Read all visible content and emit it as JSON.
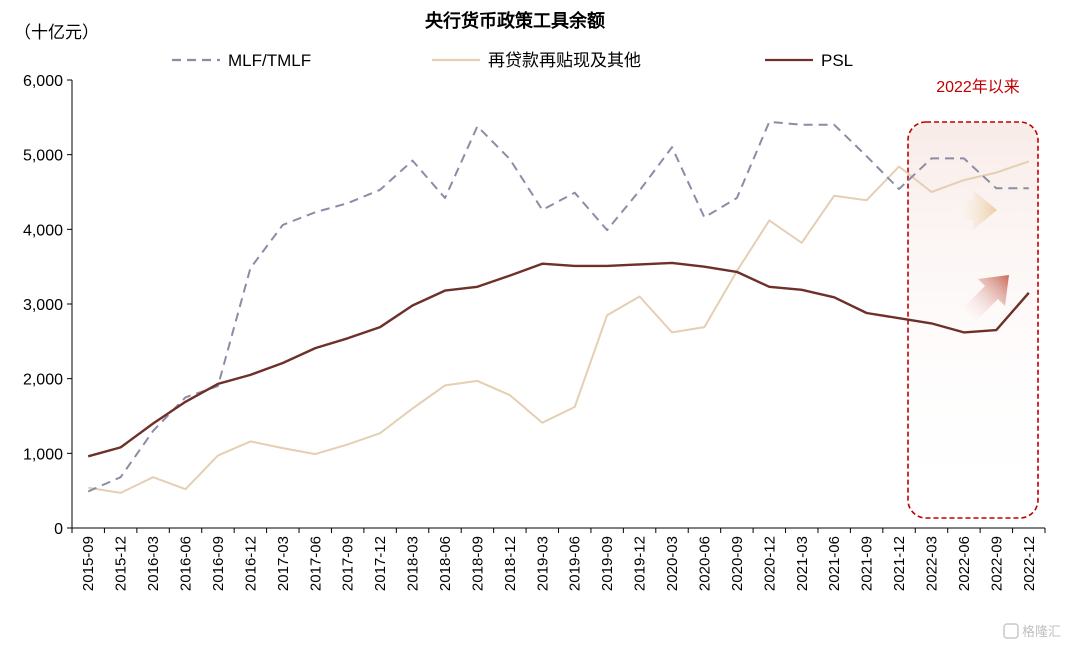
{
  "chart_data": {
    "type": "line",
    "title": "央行货币政策工具余额",
    "unit_label": "（十亿元）",
    "categories": [
      "2015-09",
      "2015-12",
      "2016-03",
      "2016-06",
      "2016-09",
      "2016-12",
      "2017-03",
      "2017-06",
      "2017-09",
      "2017-12",
      "2018-03",
      "2018-06",
      "2018-09",
      "2018-12",
      "2019-03",
      "2019-06",
      "2019-09",
      "2019-12",
      "2020-03",
      "2020-06",
      "2020-09",
      "2020-12",
      "2021-03",
      "2021-06",
      "2021-09",
      "2021-12",
      "2022-03",
      "2022-06",
      "2022-09",
      "2022-12"
    ],
    "ylim": [
      0,
      6000
    ],
    "yticks": [
      0,
      1000,
      2000,
      3000,
      4000,
      5000,
      6000
    ],
    "ytick_labels": [
      "0",
      "1,000",
      "2,000",
      "3,000",
      "4,000",
      "5,000",
      "6,000"
    ],
    "grid": false,
    "legend_position": "top",
    "series": [
      {
        "name": "MLF/TMLF",
        "color": "#8c8ca6",
        "style": "dashed",
        "values": [
          490,
          680,
          1300,
          1750,
          1900,
          3480,
          4060,
          4230,
          4350,
          4530,
          4920,
          4420,
          5380,
          4940,
          4260,
          4490,
          3990,
          4520,
          5100,
          4160,
          4420,
          5440,
          5400,
          5400,
          4980,
          4540,
          4950,
          4950,
          4550,
          4550
        ]
      },
      {
        "name": "再贷款再贴现及其他",
        "color": "#e5cfb3",
        "style": "solid",
        "values": [
          540,
          470,
          680,
          520,
          970,
          1160,
          1070,
          990,
          1120,
          1270,
          1600,
          1910,
          1970,
          1780,
          1410,
          1620,
          2850,
          3100,
          2620,
          2690,
          3440,
          4120,
          3820,
          4450,
          4390,
          4840,
          4500,
          4660,
          4760,
          4910
        ]
      },
      {
        "name": "PSL",
        "color": "#6e3028",
        "style": "solid",
        "values": [
          960,
          1080,
          1400,
          1690,
          1930,
          2050,
          2210,
          2410,
          2540,
          2690,
          2980,
          3180,
          3230,
          3380,
          3540,
          3510,
          3510,
          3530,
          3550,
          3500,
          3430,
          3230,
          3190,
          3090,
          2880,
          2810,
          2740,
          2620,
          2650,
          3150
        ]
      }
    ],
    "annotation": {
      "text": "2022年以来",
      "from": "2022-03",
      "to": "2022-12",
      "color": "#c00000"
    }
  },
  "watermark": "格隆汇"
}
